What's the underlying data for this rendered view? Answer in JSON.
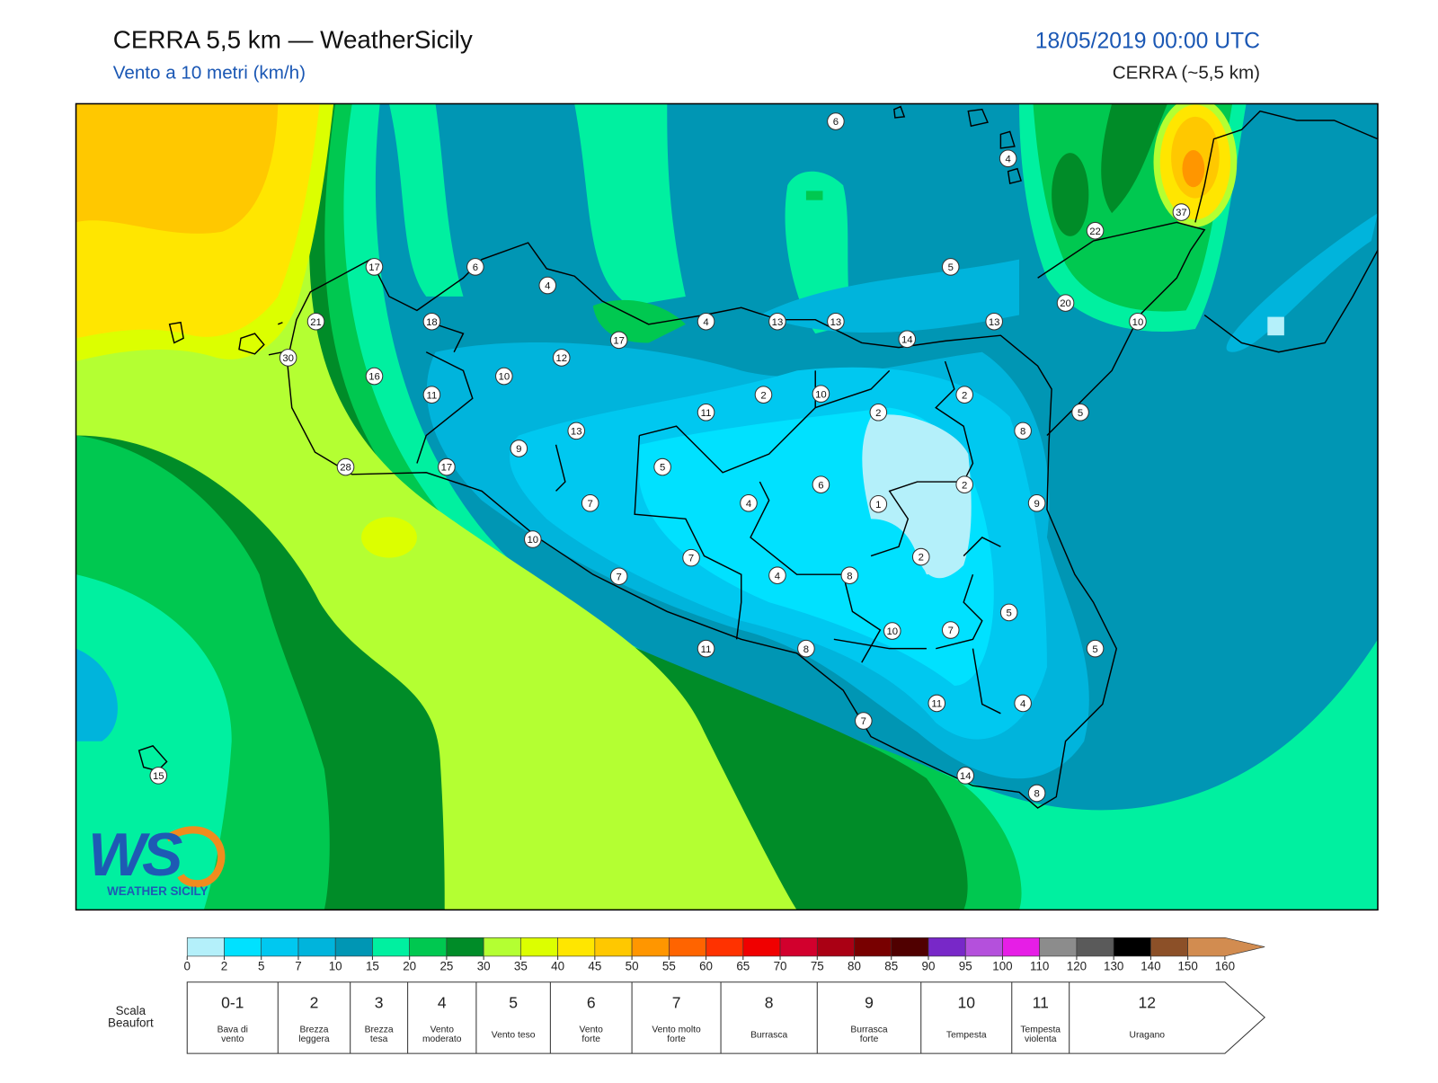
{
  "header": {
    "title": "CERRA 5,5 km — WeatherSicily",
    "subtitle": "Vento a 10 metri (km/h)",
    "datetime": "18/05/2019 00:00 UTC",
    "model": "CERRA (~5,5 km)"
  },
  "map": {
    "stations": [
      6,
      4,
      37,
      22,
      5,
      20,
      10,
      13,
      14,
      13,
      13,
      4,
      17,
      4,
      6,
      17,
      18,
      21,
      30,
      16,
      11,
      10,
      12,
      11,
      2,
      10,
      2,
      2,
      5,
      8,
      13,
      9,
      17,
      28,
      5,
      6,
      2,
      1,
      9,
      7,
      4,
      10,
      7,
      2,
      7,
      4,
      8,
      5,
      10,
      7,
      5,
      11,
      8,
      11,
      4,
      7,
      14,
      8,
      15
    ]
  },
  "logo": {
    "mark": "WS",
    "name": "WEATHER SICILY"
  },
  "colorbar": {
    "ticks": [
      0,
      2,
      5,
      7,
      10,
      15,
      20,
      25,
      30,
      35,
      40,
      45,
      50,
      55,
      60,
      65,
      70,
      75,
      80,
      85,
      90,
      95,
      100,
      110,
      120,
      130,
      140,
      150,
      160
    ],
    "colors": [
      "#b4f0fa",
      "#00e1ff",
      "#00c8f0",
      "#00b4dc",
      "#0096b4",
      "#00f0a0",
      "#00c850",
      "#008c28",
      "#b4ff32",
      "#dcff00",
      "#ffe600",
      "#ffc800",
      "#ff9600",
      "#ff6400",
      "#ff3200",
      "#f00000",
      "#d2002d",
      "#aa0014",
      "#780000",
      "#500000",
      "#7828c8",
      "#b450dc",
      "#e61ee6",
      "#8c8c8c",
      "#5a5a5a",
      "#000000",
      "#8c5028",
      "#d28c50"
    ]
  },
  "beaufort": {
    "label": [
      "Scala",
      "Beaufort"
    ],
    "forces": [
      {
        "force": "0-1",
        "desc": [
          "Bava di",
          "vento"
        ]
      },
      {
        "force": "2",
        "desc": [
          "Brezza",
          "leggera"
        ]
      },
      {
        "force": "3",
        "desc": [
          "Brezza",
          "tesa"
        ]
      },
      {
        "force": "4",
        "desc": [
          "Vento",
          "moderato"
        ]
      },
      {
        "force": "5",
        "desc": [
          "Vento teso"
        ]
      },
      {
        "force": "6",
        "desc": [
          "Vento",
          "forte"
        ]
      },
      {
        "force": "7",
        "desc": [
          "Vento molto",
          "forte"
        ]
      },
      {
        "force": "8",
        "desc": [
          "Burrasca"
        ]
      },
      {
        "force": "9",
        "desc": [
          "Burrasca",
          "forte"
        ]
      },
      {
        "force": "10",
        "desc": [
          "Tempesta"
        ]
      },
      {
        "force": "11",
        "desc": [
          "Tempesta",
          "violenta"
        ]
      },
      {
        "force": "12",
        "desc": [
          "Uragano"
        ]
      }
    ]
  }
}
